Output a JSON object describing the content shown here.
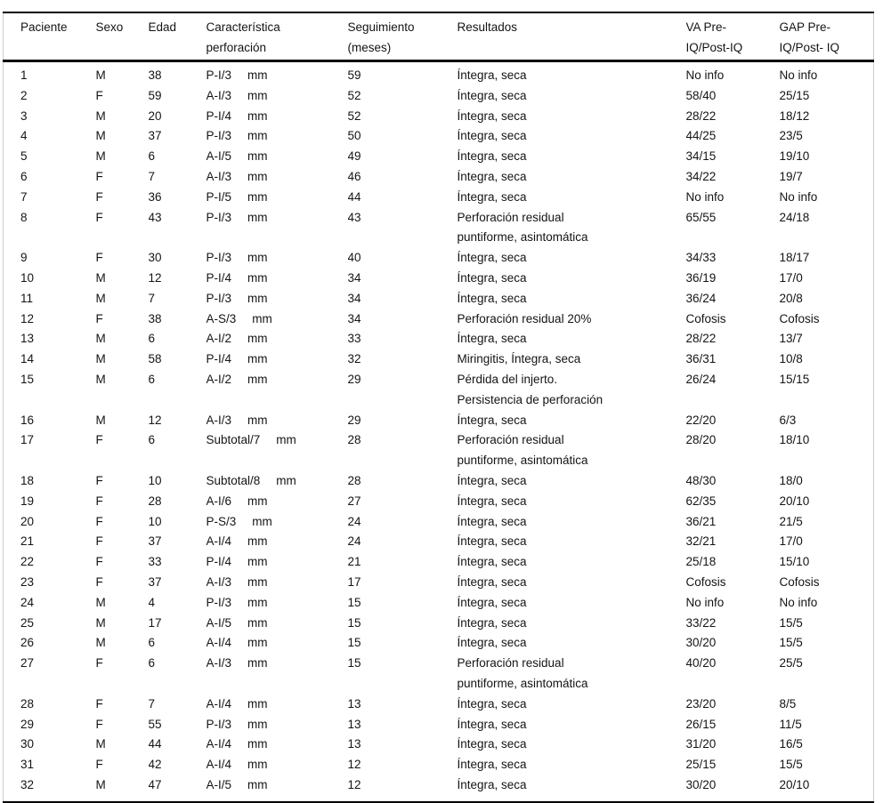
{
  "table": {
    "columns": [
      [
        "Paciente"
      ],
      [
        "Sexo"
      ],
      [
        "Edad"
      ],
      [
        "Característica",
        "perforación"
      ],
      [
        "Seguimiento",
        "(meses)"
      ],
      [
        "Resultados"
      ],
      [
        "VA Pre-",
        "IQ/Post-IQ"
      ],
      [
        "GAP Pre-",
        "IQ/Post- IQ"
      ]
    ],
    "rows": [
      {
        "paciente": "1",
        "sexo": "M",
        "edad": "38",
        "perforacion": "P-I/3",
        "unidad": "mm",
        "seguimiento": "59",
        "resultados": [
          "Íntegra, seca"
        ],
        "va": "No info",
        "gap": "No info"
      },
      {
        "paciente": "2",
        "sexo": "F",
        "edad": "59",
        "perforacion": "A-I/3",
        "unidad": "mm",
        "seguimiento": "52",
        "resultados": [
          "Íntegra, seca"
        ],
        "va": "58/40",
        "gap": "25/15"
      },
      {
        "paciente": "3",
        "sexo": "M",
        "edad": "20",
        "perforacion": "P-I/4",
        "unidad": "mm",
        "seguimiento": "52",
        "resultados": [
          "Íntegra, seca"
        ],
        "va": "28/22",
        "gap": "18/12"
      },
      {
        "paciente": "4",
        "sexo": "M",
        "edad": "37",
        "perforacion": "P-I/3",
        "unidad": "mm",
        "seguimiento": "50",
        "resultados": [
          "Íntegra, seca"
        ],
        "va": "44/25",
        "gap": "23/5"
      },
      {
        "paciente": "5",
        "sexo": "M",
        "edad": "6",
        "perforacion": "A-I/5",
        "unidad": "mm",
        "seguimiento": "49",
        "resultados": [
          "Íntegra, seca"
        ],
        "va": "34/15",
        "gap": "19/10"
      },
      {
        "paciente": "6",
        "sexo": "F",
        "edad": "7",
        "perforacion": "A-I/3",
        "unidad": "mm",
        "seguimiento": "46",
        "resultados": [
          "Íntegra, seca"
        ],
        "va": "34/22",
        "gap": "19/7"
      },
      {
        "paciente": "7",
        "sexo": "F",
        "edad": "36",
        "perforacion": "P-I/5",
        "unidad": "mm",
        "seguimiento": "44",
        "resultados": [
          "Íntegra, seca"
        ],
        "va": "No info",
        "gap": "No info"
      },
      {
        "paciente": "8",
        "sexo": "F",
        "edad": "43",
        "perforacion": "P-I/3",
        "unidad": "mm",
        "seguimiento": "43",
        "resultados": [
          "Perforación residual",
          "puntiforme, asintomática"
        ],
        "va": "65/55",
        "gap": "24/18"
      },
      {
        "paciente": "9",
        "sexo": "F",
        "edad": "30",
        "perforacion": "P-I/3",
        "unidad": "mm",
        "seguimiento": "40",
        "resultados": [
          "Íntegra, seca"
        ],
        "va": "34/33",
        "gap": "18/17"
      },
      {
        "paciente": "10",
        "sexo": "M",
        "edad": "12",
        "perforacion": "P-I/4",
        "unidad": "mm",
        "seguimiento": "34",
        "resultados": [
          "Íntegra, seca"
        ],
        "va": "36/19",
        "gap": "17/0"
      },
      {
        "paciente": "11",
        "sexo": "M",
        "edad": "7",
        "perforacion": "P-I/3",
        "unidad": "mm",
        "seguimiento": "34",
        "resultados": [
          "Íntegra, seca"
        ],
        "va": "36/24",
        "gap": "20/8"
      },
      {
        "paciente": "12",
        "sexo": "F",
        "edad": "38",
        "perforacion": "A-S/3",
        "unidad": "mm",
        "seguimiento": "34",
        "resultados": [
          "Perforación residual 20%"
        ],
        "va": "Cofosis",
        "gap": "Cofosis"
      },
      {
        "paciente": "13",
        "sexo": "M",
        "edad": "6",
        "perforacion": "A-I/2",
        "unidad": "mm",
        "seguimiento": "33",
        "resultados": [
          "Íntegra, seca"
        ],
        "va": "28/22",
        "gap": "13/7"
      },
      {
        "paciente": "14",
        "sexo": "M",
        "edad": "58",
        "perforacion": "P-I/4",
        "unidad": "mm",
        "seguimiento": "32",
        "resultados": [
          "Miringitis, Íntegra, seca"
        ],
        "va": "36/31",
        "gap": "10/8"
      },
      {
        "paciente": "15",
        "sexo": "M",
        "edad": "6",
        "perforacion": "A-I/2",
        "unidad": "mm",
        "seguimiento": "29",
        "resultados": [
          "Pérdida del injerto.",
          "Persistencia de perforación"
        ],
        "va": "26/24",
        "gap": "15/15"
      },
      {
        "paciente": "16",
        "sexo": "M",
        "edad": "12",
        "perforacion": "A-I/3",
        "unidad": "mm",
        "seguimiento": "29",
        "resultados": [
          "Íntegra, seca"
        ],
        "va": "22/20",
        "gap": "6/3"
      },
      {
        "paciente": "17",
        "sexo": "F",
        "edad": "6",
        "perforacion": "Subtotal/7",
        "unidad": "mm",
        "seguimiento": "28",
        "resultados": [
          "Perforación residual",
          "puntiforme, asintomática"
        ],
        "va": "28/20",
        "gap": "18/10"
      },
      {
        "paciente": "18",
        "sexo": "F",
        "edad": "10",
        "perforacion": "Subtotal/8",
        "unidad": "mm",
        "seguimiento": "28",
        "resultados": [
          "Íntegra, seca"
        ],
        "va": "48/30",
        "gap": "18/0"
      },
      {
        "paciente": "19",
        "sexo": "F",
        "edad": "28",
        "perforacion": "A-I/6",
        "unidad": "mm",
        "seguimiento": "27",
        "resultados": [
          "Íntegra, seca"
        ],
        "va": "62/35",
        "gap": "20/10"
      },
      {
        "paciente": "20",
        "sexo": "F",
        "edad": "10",
        "perforacion": "P-S/3",
        "unidad": "mm",
        "seguimiento": "24",
        "resultados": [
          "Íntegra, seca"
        ],
        "va": "36/21",
        "gap": "21/5"
      },
      {
        "paciente": "21",
        "sexo": "F",
        "edad": "37",
        "perforacion": "A-I/4",
        "unidad": "mm",
        "seguimiento": "24",
        "resultados": [
          "Íntegra, seca"
        ],
        "va": "32/21",
        "gap": "17/0"
      },
      {
        "paciente": "22",
        "sexo": "F",
        "edad": "33",
        "perforacion": "P-I/4",
        "unidad": "mm",
        "seguimiento": "21",
        "resultados": [
          "Íntegra, seca"
        ],
        "va": "25/18",
        "gap": "15/10"
      },
      {
        "paciente": "23",
        "sexo": "F",
        "edad": "37",
        "perforacion": "A-I/3",
        "unidad": "mm",
        "seguimiento": "17",
        "resultados": [
          "Íntegra, seca"
        ],
        "va": "Cofosis",
        "gap": "Cofosis"
      },
      {
        "paciente": "24",
        "sexo": "M",
        "edad": "4",
        "perforacion": "P-I/3",
        "unidad": "mm",
        "seguimiento": "15",
        "resultados": [
          "Íntegra, seca"
        ],
        "va": "No info",
        "gap": "No info"
      },
      {
        "paciente": "25",
        "sexo": "M",
        "edad": "17",
        "perforacion": "A-I/5",
        "unidad": "mm",
        "seguimiento": "15",
        "resultados": [
          "Íntegra, seca"
        ],
        "va": "33/22",
        "gap": "15/5"
      },
      {
        "paciente": "26",
        "sexo": "M",
        "edad": "6",
        "perforacion": "A-I/4",
        "unidad": "mm",
        "seguimiento": "15",
        "resultados": [
          "Íntegra, seca"
        ],
        "va": "30/20",
        "gap": "15/5"
      },
      {
        "paciente": "27",
        "sexo": "F",
        "edad": "6",
        "perforacion": "A-I/3",
        "unidad": "mm",
        "seguimiento": "15",
        "resultados": [
          "Perforación residual",
          "puntiforme, asintomática"
        ],
        "va": "40/20",
        "gap": "25/5"
      },
      {
        "paciente": "28",
        "sexo": "F",
        "edad": "7",
        "perforacion": "A-I/4",
        "unidad": "mm",
        "seguimiento": "13",
        "resultados": [
          "Íntegra, seca"
        ],
        "va": "23/20",
        "gap": "8/5"
      },
      {
        "paciente": "29",
        "sexo": "F",
        "edad": "55",
        "perforacion": "P-I/3",
        "unidad": "mm",
        "seguimiento": "13",
        "resultados": [
          "Íntegra, seca"
        ],
        "va": "26/15",
        "gap": "11/5"
      },
      {
        "paciente": "30",
        "sexo": "M",
        "edad": "44",
        "perforacion": "A-I/4",
        "unidad": "mm",
        "seguimiento": "13",
        "resultados": [
          "Íntegra, seca"
        ],
        "va": "31/20",
        "gap": "16/5"
      },
      {
        "paciente": "31",
        "sexo": "F",
        "edad": "42",
        "perforacion": "A-I/4",
        "unidad": "mm",
        "seguimiento": "12",
        "resultados": [
          "Íntegra, seca"
        ],
        "va": "25/15",
        "gap": "15/5"
      },
      {
        "paciente": "32",
        "sexo": "M",
        "edad": "47",
        "perforacion": "A-I/5",
        "unidad": "mm",
        "seguimiento": "12",
        "resultados": [
          "Íntegra, seca"
        ],
        "va": "30/20",
        "gap": "20/10"
      }
    ]
  }
}
